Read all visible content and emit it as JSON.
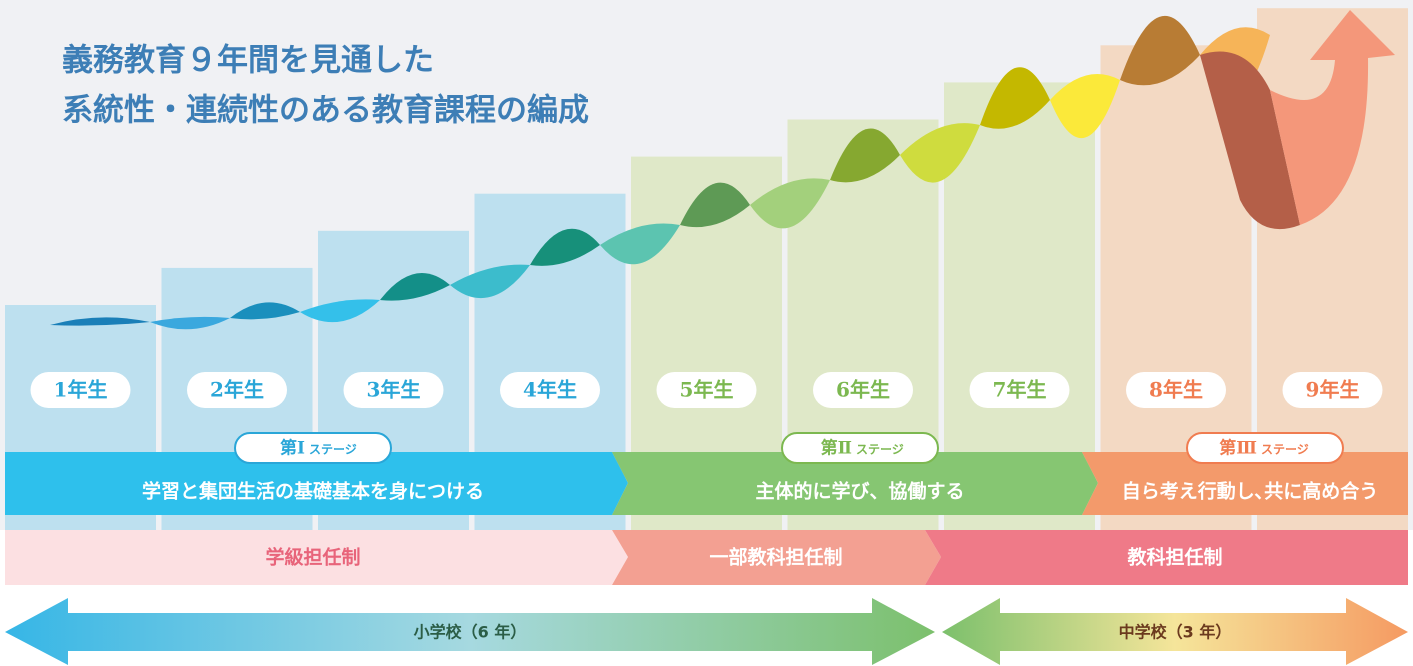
{
  "title": [
    "義務教育９年間を見通した",
    "系統性・連続性のある教育課程の編成"
  ],
  "grades": [
    "1年生",
    "2年生",
    "3年生",
    "4年生",
    "5年生",
    "6年生",
    "7年生",
    "8年生",
    "9年生"
  ],
  "stages": [
    {
      "number": "第Ⅰ",
      "suffix": "ステージ",
      "text": "学習と集団生活の基礎基本を身につける"
    },
    {
      "number": "第Ⅱ",
      "suffix": "ステージ",
      "text": "主体的に学び、協働する"
    },
    {
      "number": "第Ⅲ",
      "suffix": "ステージ",
      "text": "自ら考え行動し､共に高め合う"
    }
  ],
  "teaching": [
    "学級担任制",
    "一部教科担任制",
    "教科担任制"
  ],
  "schools": [
    "小学校（6 年）",
    "中学校（3 年）"
  ]
}
